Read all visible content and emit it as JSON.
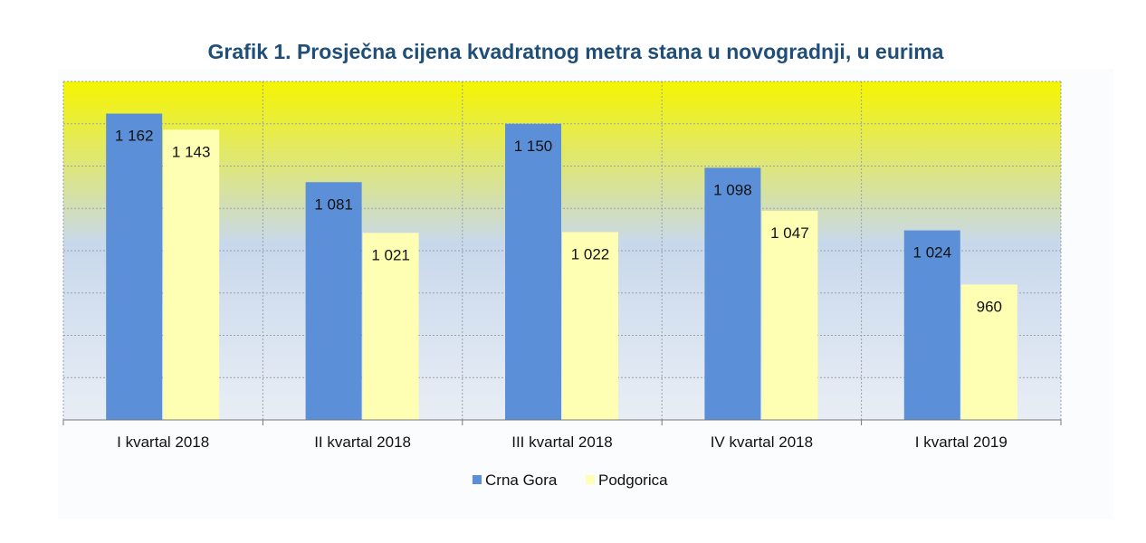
{
  "colors": {
    "title": "#1F4E79",
    "crna_gora": "#5B8FD8",
    "podgorica": "#FFFFB3",
    "plot_top": "#F5F500",
    "plot_mid": "#C8D8EC",
    "plot_bottom": "#E9EEF5",
    "grid": "#9AA0A6"
  },
  "chart_data": {
    "type": "bar",
    "title": "Grafik 1. Prosječna cijena kvadratnog metra stana u novogradnji, u eurima",
    "categories": [
      "I kvartal 2018",
      "II kvartal 2018",
      "III kvartal 2018",
      "IV kvartal 2018",
      "I kvartal 2019"
    ],
    "series": [
      {
        "name": "Crna Gora",
        "values": [
          1162,
          1081,
          1150,
          1098,
          1024
        ],
        "labels": [
          "1 162",
          "1 081",
          "1 150",
          "1 098",
          "1 024"
        ]
      },
      {
        "name": "Podgorica",
        "values": [
          1143,
          1021,
          1022,
          1047,
          960
        ],
        "labels": [
          "1 143",
          "1 021",
          "1 022",
          "1 047",
          "960"
        ]
      }
    ],
    "ylim": [
      800,
      1200
    ],
    "grid": true,
    "legend_position": "bottom"
  }
}
